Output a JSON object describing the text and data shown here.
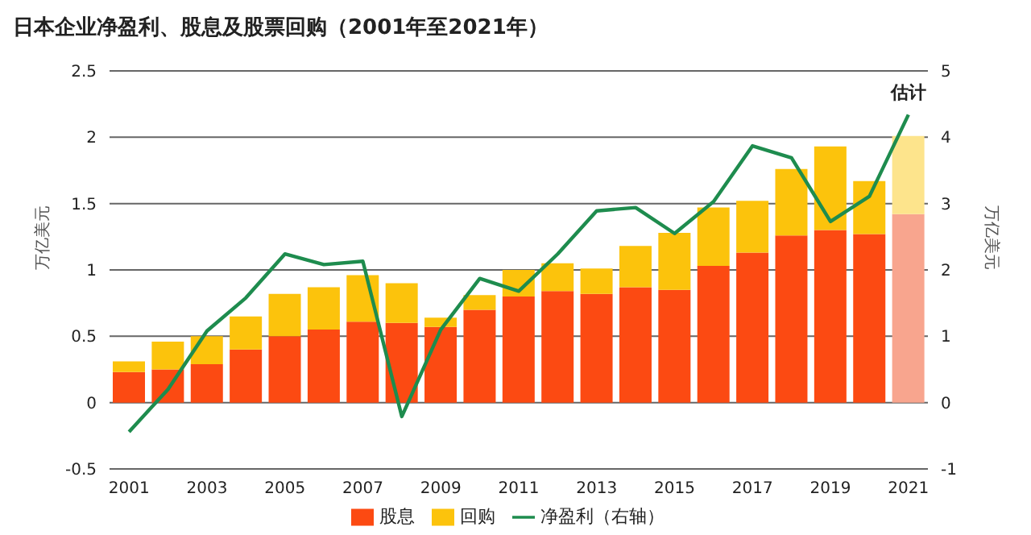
{
  "chart_data": {
    "type": "bar",
    "title": "日本企业净盈利、股息及股票回购（2001年至2021年）",
    "ylabel": "万亿美元",
    "y2label": "万亿美元",
    "categories": [
      "2001",
      null,
      "2003",
      null,
      "2005",
      null,
      "2007",
      null,
      "2009",
      null,
      "2011",
      null,
      "2013",
      null,
      "2015",
      null,
      "2017",
      null,
      "2019",
      null,
      "2021"
    ],
    "stacked": true,
    "series": [
      {
        "name": "股息",
        "color": "#fc4a12",
        "colors": [
          "#fc4a12",
          "#fc4a12",
          "#fc4a12",
          "#fc4a12",
          "#fc4a12",
          "#fc4a12",
          "#fc4a12",
          "#fc4a12",
          "#fc4a12",
          "#fc4a12",
          "#fc4a12",
          "#fc4a12",
          "#fc4a12",
          "#fc4a12",
          "#fc4a12",
          "#fc4a12",
          "#fc4a12",
          "#fc4a12",
          "#fc4a12",
          "#fc4a12",
          "#f8a58e"
        ],
        "values": [
          0.23,
          0.25,
          0.29,
          0.4,
          0.5,
          0.55,
          0.61,
          0.6,
          0.57,
          0.7,
          0.8,
          0.84,
          0.82,
          0.87,
          0.85,
          1.03,
          1.13,
          1.26,
          1.3,
          1.27,
          1.42
        ]
      },
      {
        "name": "回购",
        "color": "#fcc30c",
        "colors": [
          "#fcc30c",
          "#fcc30c",
          "#fcc30c",
          "#fcc30c",
          "#fcc30c",
          "#fcc30c",
          "#fcc30c",
          "#fcc30c",
          "#fcc30c",
          "#fcc30c",
          "#fcc30c",
          "#fcc30c",
          "#fcc30c",
          "#fcc30c",
          "#fcc30c",
          "#fcc30c",
          "#fcc30c",
          "#fcc30c",
          "#fcc30c",
          "#fcc30c",
          "#fde48c"
        ],
        "values": [
          0.08,
          0.21,
          0.21,
          0.25,
          0.32,
          0.32,
          0.35,
          0.3,
          0.07,
          0.11,
          0.2,
          0.21,
          0.19,
          0.31,
          0.43,
          0.44,
          0.39,
          0.5,
          0.63,
          0.4,
          0.59
        ]
      },
      {
        "name": "净盈利（右轴）",
        "type": "line",
        "axis": "y2",
        "color": "#1e8c4e",
        "values": [
          -0.44,
          0.2,
          1.08,
          1.58,
          2.24,
          2.08,
          2.13,
          -0.21,
          1.1,
          1.87,
          1.68,
          2.24,
          2.89,
          2.94,
          2.55,
          3.03,
          3.87,
          3.69,
          2.73,
          3.11,
          4.34
        ]
      }
    ],
    "ylim": [
      -0.5,
      2.5
    ],
    "yticks": [
      -0.5,
      0,
      0.5,
      1,
      1.5,
      2,
      2.5
    ],
    "y2lim": [
      -1,
      5
    ],
    "y2ticks": [
      -1,
      0,
      1,
      2,
      3,
      4,
      5
    ],
    "grid": "y",
    "legend": "bottom",
    "marker": "none",
    "line_style": "solid",
    "annotations": [
      "估计"
    ]
  }
}
